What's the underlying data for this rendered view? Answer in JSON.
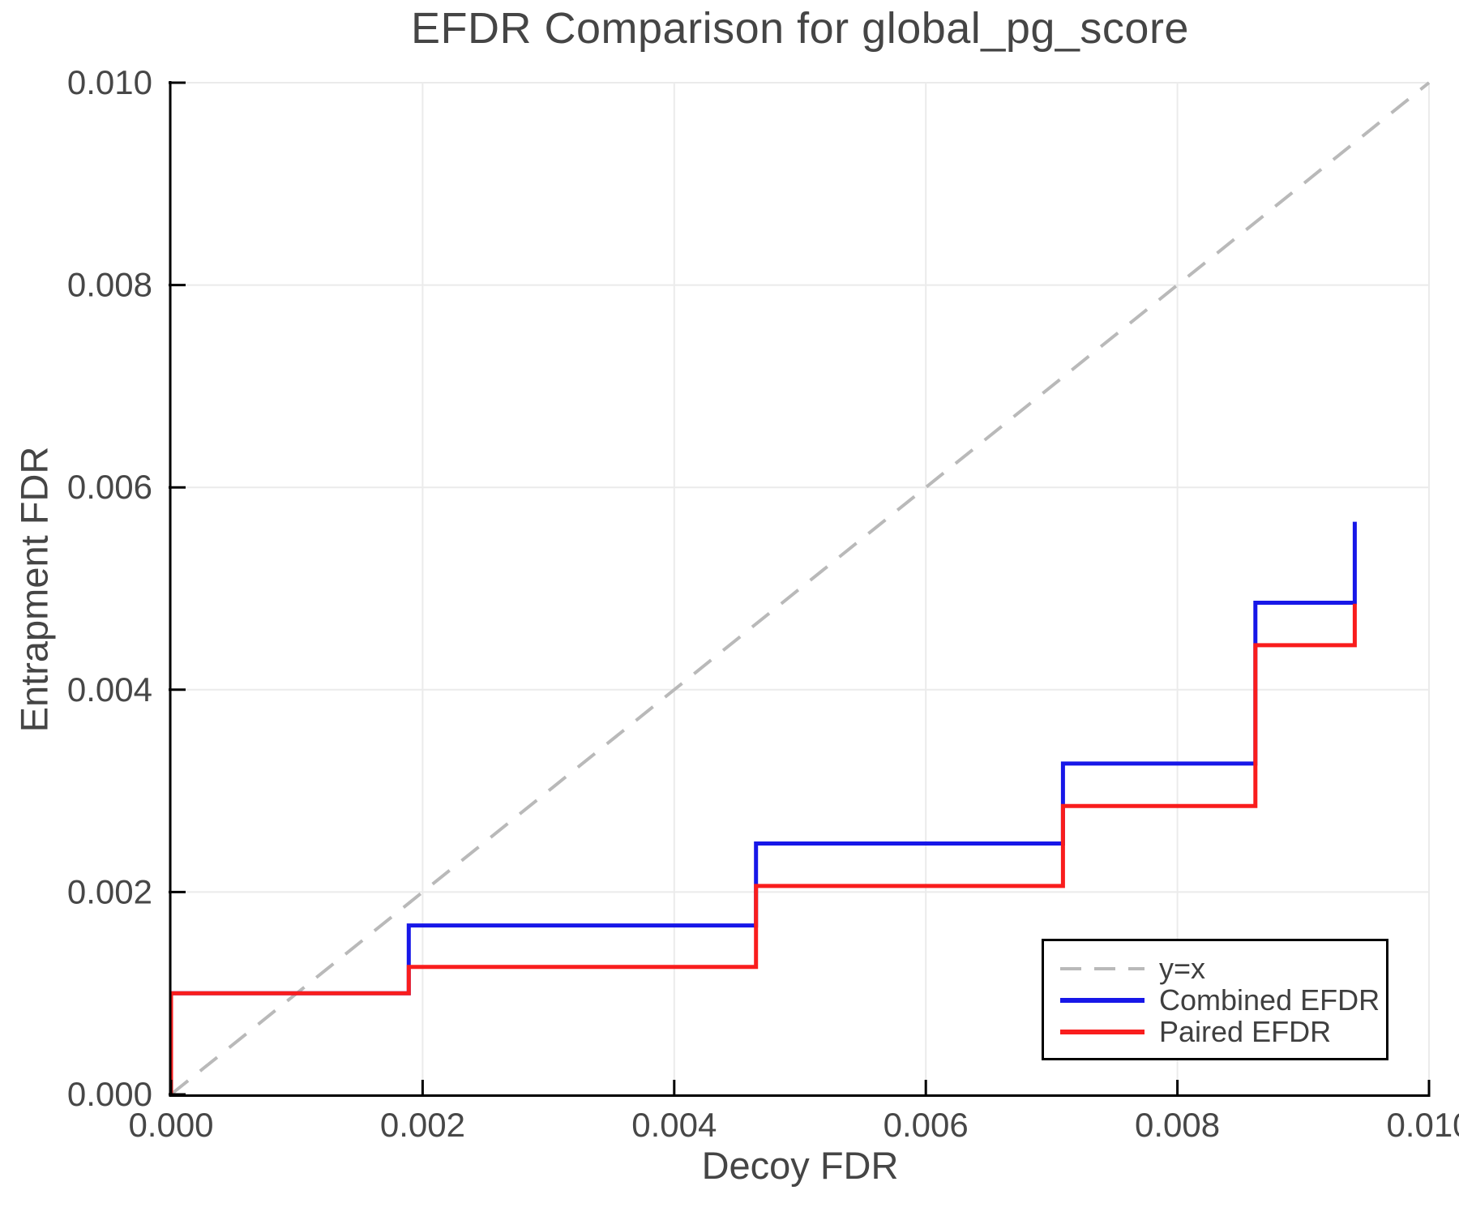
{
  "title": "EFDR Comparison for global_pg_score",
  "colors": {
    "grid": "#ebebeb",
    "spine": "#000000",
    "tick_text": "#474747",
    "title_text": "#454545",
    "identity_line": "#b9b9b9",
    "combined_line": "#1717e8",
    "paired_line": "#f91d1d"
  },
  "chart_data": {
    "type": "line",
    "subtype": "step",
    "title": "EFDR Comparison for global_pg_score",
    "xlabel": "Decoy FDR",
    "ylabel": "Entrapment FDR",
    "xlim": [
      0.0,
      0.01
    ],
    "ylim": [
      0.0,
      0.01
    ],
    "grid": true,
    "legend_position": "lower right",
    "x_tick_values": [
      0.0,
      0.002,
      0.004,
      0.006,
      0.008,
      0.01
    ],
    "x_tick_labels": [
      "0.000",
      "0.002",
      "0.004",
      "0.006",
      "0.008",
      "0.010"
    ],
    "y_tick_values": [
      0.0,
      0.002,
      0.004,
      0.006,
      0.008,
      0.01
    ],
    "y_tick_labels": [
      "0.000",
      "0.002",
      "0.004",
      "0.006",
      "0.008",
      "0.010"
    ],
    "series": [
      {
        "name": "y=x",
        "style": "dashed",
        "color": "#b9b9b9",
        "width": 4,
        "points": [
          [
            0.0,
            0.0
          ],
          [
            0.01,
            0.01
          ]
        ]
      },
      {
        "name": "Combined EFDR",
        "style": "solid",
        "color": "#1717e8",
        "width": 5,
        "points": [
          [
            0.0,
            0.0
          ],
          [
            0.0,
            0.001
          ],
          [
            0.00189,
            0.001
          ],
          [
            0.00189,
            0.00167
          ],
          [
            0.00465,
            0.00167
          ],
          [
            0.00465,
            0.00248
          ],
          [
            0.00709,
            0.00248
          ],
          [
            0.00709,
            0.00327
          ],
          [
            0.00862,
            0.00327
          ],
          [
            0.00862,
            0.00486
          ],
          [
            0.00941,
            0.00486
          ],
          [
            0.00941,
            0.00566
          ]
        ]
      },
      {
        "name": "Paired EFDR",
        "style": "solid",
        "color": "#f91d1d",
        "width": 5,
        "points": [
          [
            0.0,
            0.0
          ],
          [
            0.0,
            0.001
          ],
          [
            0.00189,
            0.001
          ],
          [
            0.00189,
            0.00126
          ],
          [
            0.00465,
            0.00126
          ],
          [
            0.00465,
            0.00206
          ],
          [
            0.00709,
            0.00206
          ],
          [
            0.00709,
            0.00285
          ],
          [
            0.00862,
            0.00285
          ],
          [
            0.00862,
            0.00444
          ],
          [
            0.00941,
            0.00444
          ],
          [
            0.00941,
            0.00485
          ]
        ]
      }
    ]
  },
  "legend": {
    "entries": [
      "y=x",
      "Combined EFDR",
      "Paired EFDR"
    ]
  }
}
